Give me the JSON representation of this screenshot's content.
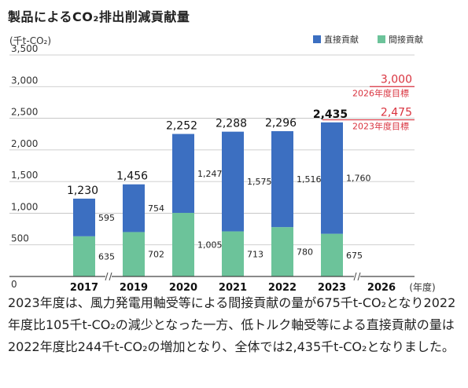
{
  "title": "製品によるCO₂排出削減貢献量",
  "caption": "2023年度は、風力発電用軸受等による間接貢献の量が675千t-CO₂となり2022年度比105千t-CO₂の減少となった一方、低トルク軸受等による直接貢献の量は2022年度比244千t-CO₂の増加となり、全体では2,435千t-CO₂となりました。",
  "chart_data": {
    "type": "bar",
    "stacked": true,
    "unit_label": "(千t-CO₂)",
    "x_unit_label": "(年度)",
    "categories": [
      "2017",
      "2019",
      "2020",
      "2021",
      "2022",
      "2023",
      "2026"
    ],
    "series": [
      {
        "name": "間接貢献",
        "color": "#6cc39a",
        "values": [
          635,
          702,
          1005,
          713,
          780,
          675,
          null
        ]
      },
      {
        "name": "直接貢献",
        "color": "#3c6fc1",
        "values": [
          595,
          754,
          1247,
          1575,
          1516,
          1760,
          null
        ]
      }
    ],
    "totals": [
      "1,230",
      "1,456",
      "2,252",
      "2,288",
      "2,296",
      "2,435",
      null
    ],
    "segment_labels": {
      "indirect": [
        "635",
        "702",
        "1,005",
        "713",
        "780",
        "675"
      ],
      "direct": [
        "595",
        "754",
        "1,247",
        "1,575",
        "1,516",
        "1,760"
      ]
    },
    "ylim": [
      0,
      3500
    ],
    "yticks": [
      {
        "value": 0,
        "label": "0"
      },
      {
        "value": 500,
        "label": "500"
      },
      {
        "value": 1000,
        "label": "1,000"
      },
      {
        "value": 1500,
        "label": "1,500"
      },
      {
        "value": 2000,
        "label": "2,000"
      },
      {
        "value": 2500,
        "label": "2,500"
      },
      {
        "value": 3000,
        "label": "3,000"
      },
      {
        "value": 3500,
        "label": "3,500"
      }
    ],
    "grid": true,
    "legend_position": "top-right",
    "axis_breaks_after": [
      "2017",
      "2023"
    ],
    "targets": [
      {
        "value": 3000,
        "value_label": "3,000",
        "label": "2026年度目標",
        "color": "#d9333f"
      },
      {
        "value": 2475,
        "value_label": "2,475",
        "label": "2023年度目標",
        "color": "#d9333f"
      }
    ],
    "gridline_color": "#bfbfbf",
    "baseline_color": "#444444"
  }
}
